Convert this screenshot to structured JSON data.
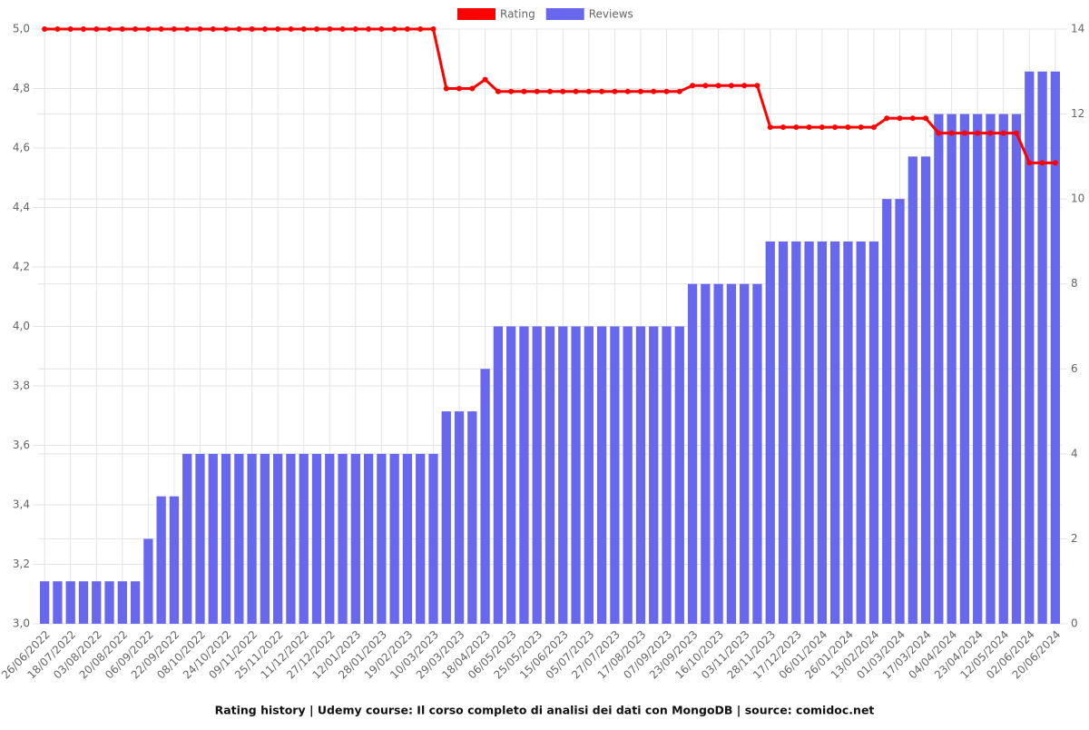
{
  "chart_data": {
    "type": "bar-line",
    "title": "Rating history | Udemy course: Il corso completo di analisi dei dati con MongoDB | source: comidoc.net",
    "categories": [
      "26/06/2022",
      null,
      "18/07/2022",
      null,
      "03/08/2022",
      null,
      "20/08/2022",
      null,
      "06/09/2022",
      null,
      "22/09/2022",
      null,
      "08/10/2022",
      null,
      "24/10/2022",
      null,
      "09/11/2022",
      null,
      "25/11/2022",
      null,
      "11/12/2022",
      null,
      "27/12/2022",
      null,
      "12/01/2023",
      null,
      "28/01/2023",
      null,
      "19/02/2023",
      null,
      "10/03/2023",
      null,
      "29/03/2023",
      null,
      "18/04/2023",
      null,
      "06/05/2023",
      null,
      "25/05/2023",
      null,
      "15/06/2023",
      null,
      "05/07/2023",
      null,
      "27/07/2023",
      null,
      "17/08/2023",
      null,
      "07/09/2023",
      null,
      "23/09/2023",
      null,
      "16/10/2023",
      null,
      "03/11/2023",
      null,
      "28/11/2023",
      null,
      "17/12/2023",
      null,
      "06/01/2024",
      null,
      "26/01/2024",
      null,
      "13/02/2024",
      null,
      "01/03/2024",
      null,
      "17/03/2024",
      null,
      "04/04/2024",
      null,
      "23/04/2024",
      null,
      "12/05/2024",
      null,
      "02/06/2024",
      null,
      "20/06/2024"
    ],
    "series": [
      {
        "name": "Rating",
        "color": "#ff0000",
        "type": "line",
        "axis": "y",
        "values": [
          5,
          5,
          5,
          5,
          5,
          5,
          5,
          5,
          5,
          5,
          5,
          5,
          5,
          5,
          5,
          5,
          5,
          5,
          5,
          5,
          5,
          5,
          5,
          5,
          5,
          5,
          5,
          5,
          5,
          5,
          5,
          4.8,
          4.8,
          4.8,
          4.83,
          4.79,
          4.79,
          4.79,
          4.79,
          4.79,
          4.79,
          4.79,
          4.79,
          4.79,
          4.79,
          4.79,
          4.79,
          4.79,
          4.79,
          4.79,
          4.81,
          4.81,
          4.81,
          4.81,
          4.81,
          4.81,
          4.67,
          4.67,
          4.67,
          4.67,
          4.67,
          4.67,
          4.67,
          4.67,
          4.67,
          4.7,
          4.7,
          4.7,
          4.7,
          4.65,
          4.65,
          4.65,
          4.65,
          4.65,
          4.65,
          4.65,
          4.55,
          4.55,
          4.55
        ]
      },
      {
        "name": "Reviews",
        "color": "#6868ee",
        "type": "bar",
        "axis": "y2",
        "values": [
          1,
          1,
          1,
          1,
          1,
          1,
          1,
          1,
          2,
          3,
          3,
          4,
          4,
          4,
          4,
          4,
          4,
          4,
          4,
          4,
          4,
          4,
          4,
          4,
          4,
          4,
          4,
          4,
          4,
          4,
          4,
          5,
          5,
          5,
          6,
          7,
          7,
          7,
          7,
          7,
          7,
          7,
          7,
          7,
          7,
          7,
          7,
          7,
          7,
          7,
          8,
          8,
          8,
          8,
          8,
          8,
          9,
          9,
          9,
          9,
          9,
          9,
          9,
          9,
          9,
          10,
          10,
          11,
          11,
          12,
          12,
          12,
          12,
          12,
          12,
          12,
          13,
          13,
          13
        ]
      }
    ],
    "ylim": [
      3,
      5
    ],
    "yticks": [
      {
        "value": 3,
        "label": "3,0"
      },
      {
        "value": 3.2,
        "label": "3,2"
      },
      {
        "value": 3.4,
        "label": "3,4"
      },
      {
        "value": 3.6,
        "label": "3,6"
      },
      {
        "value": 3.8,
        "label": "3,8"
      },
      {
        "value": 4,
        "label": "4,0"
      },
      {
        "value": 4.2,
        "label": "4,2"
      },
      {
        "value": 4.4,
        "label": "4,4"
      },
      {
        "value": 4.6,
        "label": "4,6"
      },
      {
        "value": 4.8,
        "label": "4,8"
      },
      {
        "value": 5,
        "label": "5,0"
      }
    ],
    "y2lim": [
      0,
      14
    ],
    "y2ticks": [
      0,
      2,
      4,
      6,
      8,
      10,
      12,
      14
    ],
    "grid": true,
    "legend": "top"
  }
}
